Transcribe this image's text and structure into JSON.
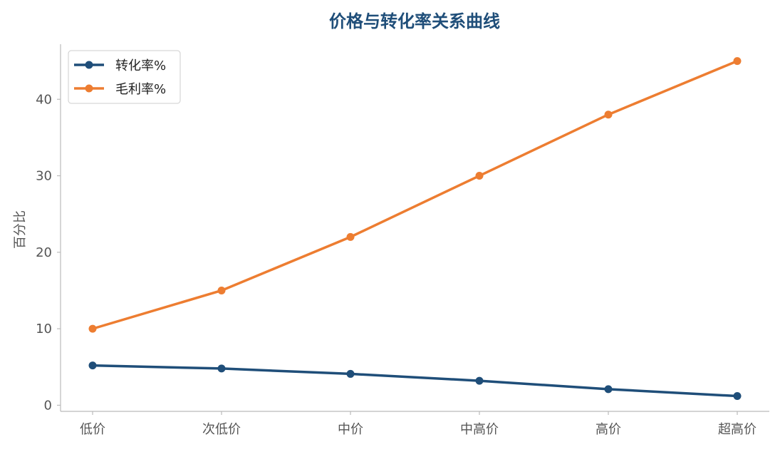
{
  "chart_data": {
    "type": "line",
    "title": "价格与转化率关系曲线",
    "xlabel": "",
    "ylabel": "百分比",
    "categories": [
      "低价",
      "次低价",
      "中价",
      "中高价",
      "高价",
      "超高价"
    ],
    "series": [
      {
        "name": "转化率%",
        "values": [
          5.2,
          4.8,
          4.1,
          3.2,
          2.1,
          1.2
        ],
        "color": "#1f4e79",
        "marker": "circle"
      },
      {
        "name": "毛利率%",
        "values": [
          10,
          15,
          22,
          30,
          38,
          45
        ],
        "color": "#ed7d31",
        "marker": "circle"
      }
    ],
    "ylim": [
      -0.8,
      47.2
    ],
    "yticks": [
      0,
      10,
      20,
      30,
      40
    ],
    "grid": false,
    "legend_position": "upper-left",
    "title_color": "#1f4e79",
    "axis_color": "#bbbbbb"
  }
}
